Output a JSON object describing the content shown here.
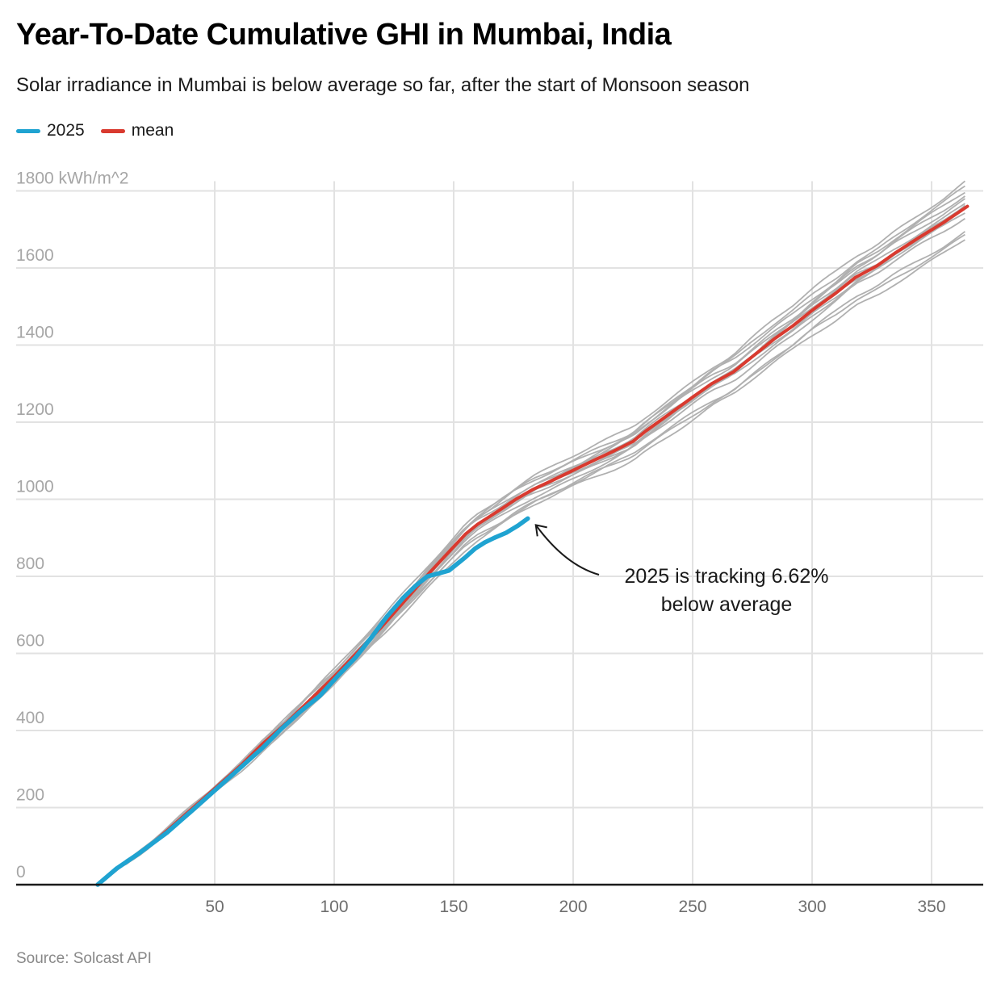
{
  "header": {
    "title": "Year-To-Date Cumulative GHI in Mumbai, India",
    "subtitle": "Solar irradiance in Mumbai is below average so far, after the start of Monsoon season"
  },
  "legend": [
    {
      "label": "2025",
      "color": "#1fa3d1"
    },
    {
      "label": "mean",
      "color": "#d93a2f"
    }
  ],
  "footer": {
    "source": "Source: Solcast API"
  },
  "chart_data": {
    "type": "line",
    "title": "Year-To-Date Cumulative GHI in Mumbai, India",
    "subtitle": "Solar irradiance in Mumbai is below average so far, after the start of Monsoon season",
    "xlabel": "",
    "ylabel": "kWh/m^2",
    "xlim": [
      0,
      370
    ],
    "ylim": [
      0,
      1800
    ],
    "x_ticks": [
      50,
      100,
      150,
      200,
      250,
      300,
      350
    ],
    "y_ticks": [
      {
        "value": 0,
        "label": "0"
      },
      {
        "value": 200,
        "label": "200"
      },
      {
        "value": 400,
        "label": "400"
      },
      {
        "value": 600,
        "label": "600"
      },
      {
        "value": 800,
        "label": "800"
      },
      {
        "value": 1000,
        "label": "1000"
      },
      {
        "value": 1200,
        "label": "1200"
      },
      {
        "value": 1400,
        "label": "1400"
      },
      {
        "value": 1600,
        "label": "1600"
      },
      {
        "value": 1800,
        "label": "1800 kWh/m^2"
      }
    ],
    "grid": true,
    "legend_position": "top-left",
    "series": [
      {
        "name": "2025",
        "color": "#1fa3d1",
        "x": [
          1,
          9,
          18,
          30,
          41,
          51,
          61,
          70,
          78,
          86,
          94,
          102,
          109,
          116,
          122,
          129,
          134,
          139,
          144,
          148,
          152,
          155,
          159,
          163,
          167,
          172,
          177,
          181
        ],
        "y": [
          0,
          42,
          80,
          135,
          195,
          250,
          305,
          355,
          405,
          450,
          490,
          545,
          590,
          645,
          695,
          745,
          775,
          800,
          808,
          815,
          835,
          850,
          872,
          888,
          900,
          913,
          932,
          950
        ]
      },
      {
        "name": "mean",
        "color": "#d93a2f",
        "x": [
          1,
          10,
          20,
          30,
          41,
          51,
          61,
          70,
          80,
          90,
          100,
          110,
          120,
          130,
          140,
          149,
          155,
          160,
          165,
          170,
          176,
          183,
          190,
          200,
          210,
          217,
          225,
          230,
          240,
          250,
          258,
          267,
          275,
          284,
          292,
          300,
          310,
          318,
          327,
          335,
          345,
          355,
          365
        ],
        "y": [
          0,
          45,
          88,
          140,
          200,
          255,
          310,
          365,
          420,
          480,
          540,
          605,
          670,
          740,
          810,
          870,
          910,
          935,
          955,
          975,
          1000,
          1025,
          1045,
          1075,
          1105,
          1125,
          1150,
          1175,
          1220,
          1265,
          1300,
          1330,
          1370,
          1415,
          1450,
          1490,
          1535,
          1575,
          1605,
          1640,
          1680,
          1718,
          1760
        ]
      }
    ],
    "historical_years": {
      "color": "#b0b0b0",
      "description": "Individual prior-year cumulative curves (grey), expressed as scale factors of the mean curve before and after monsoon onset (~day 150)",
      "count": 14,
      "pre_monsoon_factor": [
        1.03,
        1.02,
        1.02,
        1.01,
        1.01,
        1.0,
        1.0,
        0.99,
        0.99,
        0.99,
        0.98,
        0.97,
        0.97,
        0.96
      ],
      "end_of_year_value": [
        1826,
        1812,
        1800,
        1792,
        1785,
        1775,
        1768,
        1762,
        1755,
        1748,
        1738,
        1700,
        1690,
        1677
      ]
    },
    "annotation": {
      "text_line1": "2025 is tracking 6.62%",
      "text_line2": "below average",
      "points_to": {
        "x": 182,
        "y": 950
      }
    }
  }
}
